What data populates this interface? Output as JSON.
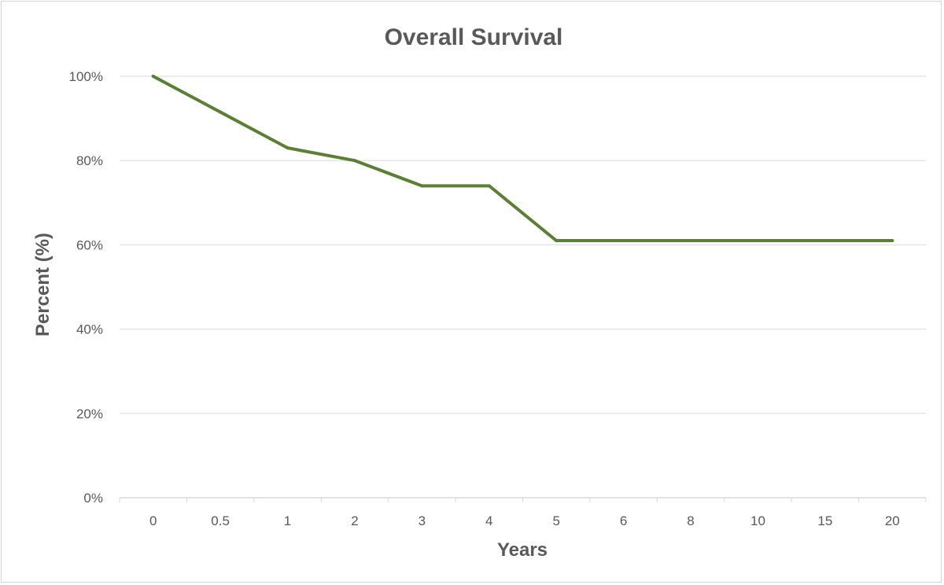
{
  "chart_data": {
    "type": "line",
    "title": "Overall Survival",
    "xlabel": "Years",
    "ylabel": "Percent (%)",
    "categories": [
      "0",
      "0.5",
      "1",
      "2",
      "3",
      "4",
      "5",
      "6",
      "8",
      "10",
      "15",
      "20"
    ],
    "series": [
      {
        "values": [
          100,
          91.5,
          83,
          80,
          74,
          74,
          61,
          61,
          61,
          61,
          61,
          61
        ],
        "color": "#5a7f35"
      }
    ],
    "ylim": [
      0,
      100
    ],
    "yticks": [
      0,
      20,
      40,
      60,
      80,
      100
    ],
    "ytick_labels": [
      "0%",
      "20%",
      "40%",
      "60%",
      "80%",
      "100%"
    ],
    "grid": true,
    "legend": "none",
    "colors": {
      "gridline": "#d9d9d9",
      "text": "#595959",
      "line": "#5a7f35"
    }
  }
}
